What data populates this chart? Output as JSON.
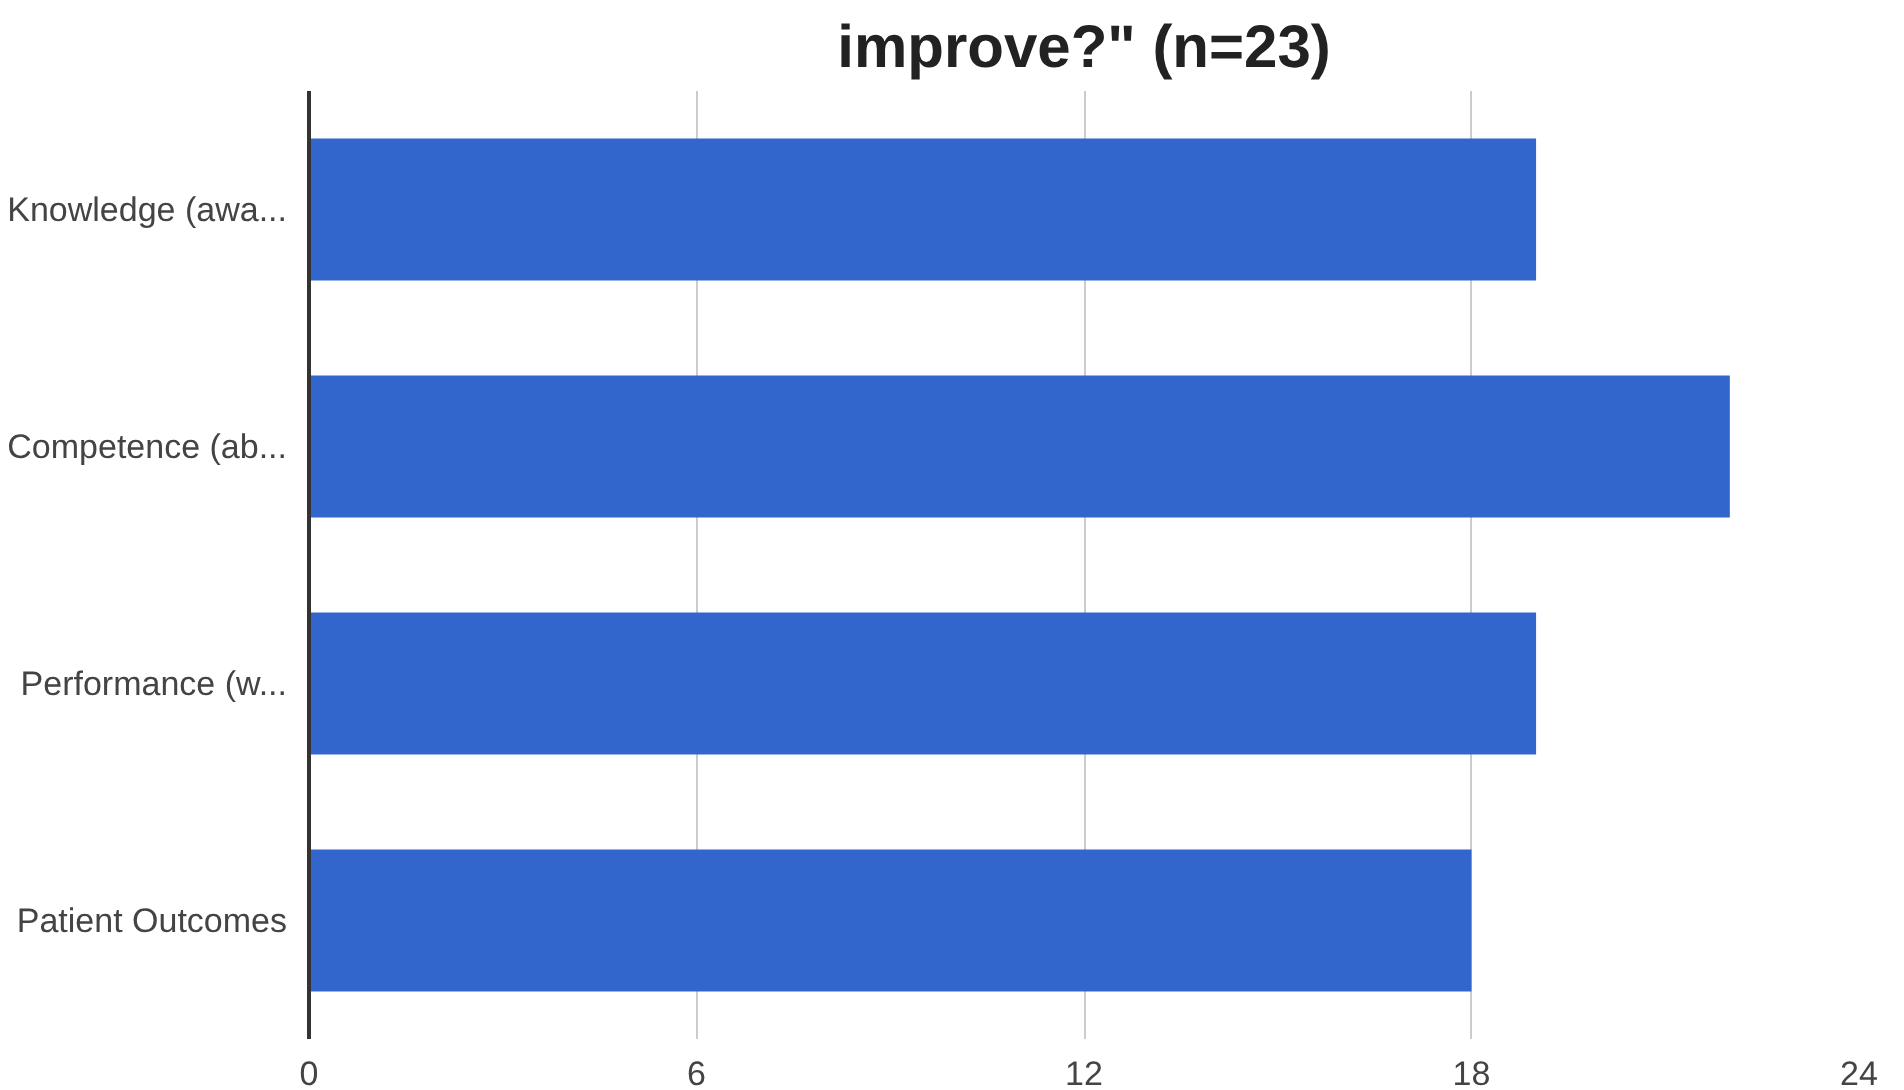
{
  "chart_data": {
    "type": "bar",
    "orientation": "horizontal",
    "title": "improve?\" (n=23)",
    "categories": [
      "Knowledge (awa...",
      "Competence (ab...",
      "Performance (w...",
      "Patient Outcomes"
    ],
    "values": [
      19,
      22,
      19,
      18
    ],
    "color": "#3366cc",
    "xlim": [
      0,
      24
    ],
    "xticks": [
      0,
      6,
      12,
      18,
      24
    ],
    "grid": "x"
  }
}
